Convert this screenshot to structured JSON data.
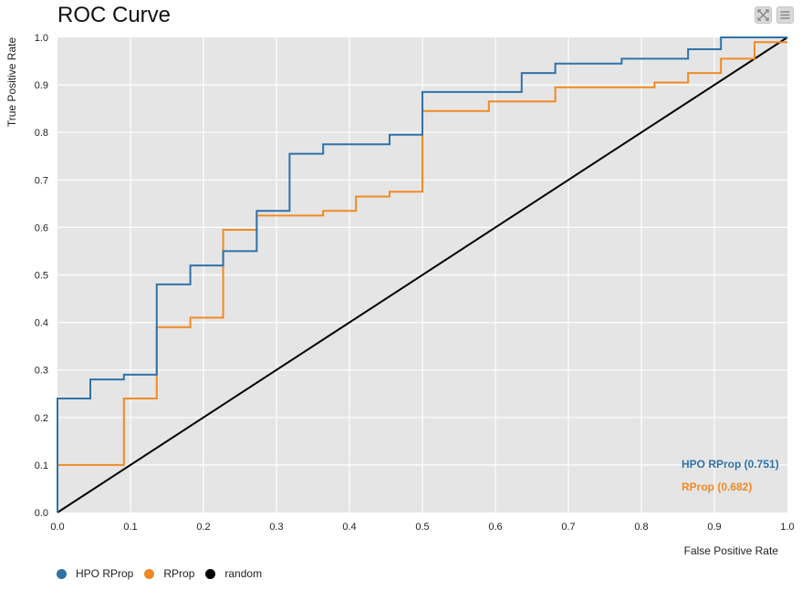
{
  "chart_data": {
    "type": "line",
    "title": "ROC Curve",
    "xlabel": "False Positive Rate",
    "ylabel": "True Positive Rate",
    "xlim": [
      0,
      1
    ],
    "ylim": [
      0,
      1
    ],
    "grid": true,
    "background": "#e5e5e5",
    "legend_position": "bottom-left",
    "x_ticks": [
      "0.0",
      "0.1",
      "0.2",
      "0.3",
      "0.4",
      "0.5",
      "0.6",
      "0.7",
      "0.8",
      "0.9",
      "1.0"
    ],
    "y_ticks": [
      "0.0",
      "0.1",
      "0.2",
      "0.3",
      "0.4",
      "0.5",
      "0.6",
      "0.7",
      "0.8",
      "0.9",
      "1.0"
    ],
    "series": [
      {
        "name": "HPO RProp",
        "color": "#2f72a8",
        "annotation": "HPO RProp (0.751)",
        "points": [
          [
            0,
            0
          ],
          [
            0,
            0.24
          ],
          [
            0.045,
            0.24
          ],
          [
            0.045,
            0.28
          ],
          [
            0.091,
            0.28
          ],
          [
            0.091,
            0.29
          ],
          [
            0.136,
            0.29
          ],
          [
            0.136,
            0.48
          ],
          [
            0.182,
            0.48
          ],
          [
            0.182,
            0.52
          ],
          [
            0.227,
            0.52
          ],
          [
            0.227,
            0.55
          ],
          [
            0.273,
            0.55
          ],
          [
            0.273,
            0.635
          ],
          [
            0.318,
            0.635
          ],
          [
            0.318,
            0.755
          ],
          [
            0.364,
            0.755
          ],
          [
            0.364,
            0.775
          ],
          [
            0.455,
            0.775
          ],
          [
            0.455,
            0.795
          ],
          [
            0.5,
            0.795
          ],
          [
            0.5,
            0.885
          ],
          [
            0.636,
            0.885
          ],
          [
            0.636,
            0.925
          ],
          [
            0.682,
            0.925
          ],
          [
            0.682,
            0.945
          ],
          [
            0.773,
            0.945
          ],
          [
            0.773,
            0.955
          ],
          [
            0.864,
            0.955
          ],
          [
            0.864,
            0.975
          ],
          [
            0.909,
            0.975
          ],
          [
            0.909,
            1.0
          ],
          [
            1.0,
            1.0
          ]
        ]
      },
      {
        "name": "RProp",
        "color": "#f08a24",
        "annotation": "RProp (0.682)",
        "points": [
          [
            0,
            0
          ],
          [
            0,
            0.1
          ],
          [
            0.091,
            0.1
          ],
          [
            0.091,
            0.24
          ],
          [
            0.136,
            0.24
          ],
          [
            0.136,
            0.39
          ],
          [
            0.182,
            0.39
          ],
          [
            0.182,
            0.41
          ],
          [
            0.227,
            0.41
          ],
          [
            0.227,
            0.595
          ],
          [
            0.273,
            0.595
          ],
          [
            0.273,
            0.625
          ],
          [
            0.364,
            0.625
          ],
          [
            0.364,
            0.635
          ],
          [
            0.409,
            0.635
          ],
          [
            0.409,
            0.665
          ],
          [
            0.455,
            0.665
          ],
          [
            0.455,
            0.675
          ],
          [
            0.5,
            0.675
          ],
          [
            0.5,
            0.845
          ],
          [
            0.591,
            0.845
          ],
          [
            0.591,
            0.865
          ],
          [
            0.682,
            0.865
          ],
          [
            0.682,
            0.895
          ],
          [
            0.818,
            0.895
          ],
          [
            0.818,
            0.905
          ],
          [
            0.864,
            0.905
          ],
          [
            0.864,
            0.925
          ],
          [
            0.909,
            0.925
          ],
          [
            0.909,
            0.955
          ],
          [
            0.955,
            0.955
          ],
          [
            0.955,
            0.99
          ],
          [
            1.0,
            0.99
          ]
        ]
      },
      {
        "name": "random",
        "color": "#000000",
        "points": [
          [
            0,
            0
          ],
          [
            1,
            1
          ]
        ]
      }
    ]
  },
  "toolbar": {
    "expand_icon": "expand-icon",
    "menu_icon": "menu-icon"
  }
}
